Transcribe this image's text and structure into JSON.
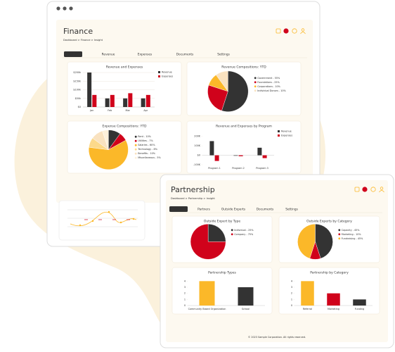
{
  "finance": {
    "title": "Finance",
    "breadcrumb": "Dashboard > Finance > Insight",
    "tabs": [
      "Insight",
      "Revenue",
      "Expenses",
      "Documents",
      "Settings"
    ],
    "active_tab": 0,
    "charts": [
      {
        "type": "bar",
        "title": "Revenue and Expenses",
        "categories": [
          "Jan",
          "Feb",
          "Mar",
          "Apr"
        ],
        "series": [
          {
            "name": "Revenue",
            "color": "#333333",
            "values": [
              200,
              50,
              50,
              50
            ]
          },
          {
            "name": "Expenses",
            "color": "#d0021b",
            "values": [
              70,
              70,
              80,
              70
            ]
          }
        ],
        "ylim": [
          0,
          200
        ],
        "yticks": [
          {
            "value": 0,
            "label": "$0"
          },
          {
            "value": 50,
            "label": "$50k"
          },
          {
            "value": 100,
            "label": "$100k"
          },
          {
            "value": 150,
            "label": "$150k"
          },
          {
            "value": 200,
            "label": "$200k"
          }
        ],
        "grid": true
      },
      {
        "type": "pie",
        "title": "Revenue Compositions: YTD",
        "labels": [
          "Government - 55%",
          "Foundations - 25%",
          "Corporations - 10%",
          "Individual Donors - 10%"
        ],
        "values": [
          55,
          25,
          10,
          10
        ],
        "colors": [
          "#333333",
          "#d0021b",
          "#fbb829",
          "#f9e2c0"
        ]
      },
      {
        "type": "pie",
        "title": "Expense Compositions: YTD",
        "labels": [
          "Rent - 10%",
          "Utilities - 7%",
          "Salaries - 60%",
          "Technology - 8%",
          "Benefits - 10%",
          "Miscellaneous - 5%"
        ],
        "values": [
          10,
          7,
          60,
          8,
          10,
          5
        ],
        "colors": [
          "#333333",
          "#d0021b",
          "#fbb829",
          "#fcd98a",
          "#f9e2c0",
          "#fdf0da"
        ]
      },
      {
        "type": "bar",
        "title": "Revenue and Expenses by Program",
        "categories": [
          "Program 1",
          "Program 2",
          "Program 3"
        ],
        "series": [
          {
            "name": "Revenue",
            "color": "#333333",
            "values": [
              150,
              -5,
              80
            ]
          },
          {
            "name": "Expenses",
            "color": "#d0021b",
            "values": [
              -60,
              -10,
              -30
            ]
          }
        ],
        "ylim": [
          -100,
          250
        ],
        "yticks": [
          {
            "value": -100,
            "label": "-100K"
          },
          {
            "value": 0,
            "label": "$0"
          },
          {
            "value": 100,
            "label": "100K"
          },
          {
            "value": 200,
            "label": "200K"
          }
        ],
        "grid": false
      }
    ]
  },
  "partnership": {
    "title": "Partnership",
    "breadcrumb": "Dashboard > Partnership > Insight",
    "tabs": [
      "Insight",
      "Partners",
      "Outside Experts",
      "Documents",
      "Settings"
    ],
    "active_tab": 0,
    "charts": [
      {
        "type": "pie",
        "title": "Outside Expert by Type",
        "labels": [
          "Individual - 25%",
          "Company - 75%"
        ],
        "values": [
          25,
          75
        ],
        "colors": [
          "#333333",
          "#d0021b"
        ]
      },
      {
        "type": "pie",
        "title": "Outside Experts by Category",
        "labels": [
          "Capacity - 45%",
          "Marketing - 10%",
          "Fundraising - 45%"
        ],
        "values": [
          45,
          10,
          45
        ],
        "colors": [
          "#333333",
          "#d0021b",
          "#fbb829"
        ]
      },
      {
        "type": "bar",
        "title": "Partnership Types",
        "categories": [
          "Community Based Organization",
          "School"
        ],
        "series": [
          {
            "colors": [
              "#fbb829",
              "#333333"
            ],
            "values": [
              4,
              3
            ]
          }
        ],
        "ylim": [
          0,
          4.5
        ],
        "yticks": [
          0,
          1,
          2,
          3,
          4
        ],
        "grid": false
      },
      {
        "type": "bar",
        "title": "Partnership by Category",
        "categories": [
          "Referral",
          "Marketing",
          "Funding"
        ],
        "series": [
          {
            "colors": [
              "#fbb829",
              "#d0021b",
              "#333333"
            ],
            "values": [
              4,
              2,
              1
            ]
          }
        ],
        "ylim": [
          0,
          4.5
        ],
        "yticks": [
          0,
          1,
          2,
          3,
          4
        ],
        "grid": false
      }
    ],
    "footer": "© 2023 Sample Corporation. All rights reserved."
  }
}
